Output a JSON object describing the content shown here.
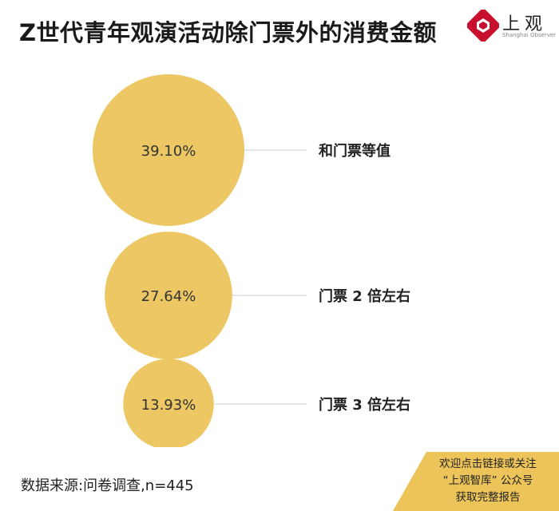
{
  "title": "Z世代青年观演活动除门票外的消费金额",
  "logo": {
    "text": "上观",
    "subtitle": "Shanghai Observer"
  },
  "source": "数据来源:问卷调查,n=445",
  "cta": {
    "lines": [
      "欢迎点击链接或关注",
      "“上观智库” 公众号",
      "获取完整报告"
    ]
  },
  "colors": {
    "bubble": "#ecc764",
    "leader": "#dddddd",
    "logo_red": "#c8102e",
    "cta_bg": "#ecc45a"
  },
  "chart_data": {
    "type": "bubble",
    "title": "Z世代青年观演活动除门票外的消费金额",
    "items": [
      {
        "label": "和门票等值",
        "value": 39.1,
        "value_label": "39.10%"
      },
      {
        "label": "门票 2 倍左右",
        "value": 27.64,
        "value_label": "27.64%"
      },
      {
        "label": "门票 3 倍左右",
        "value": 13.93,
        "value_label": "13.93%"
      }
    ]
  }
}
